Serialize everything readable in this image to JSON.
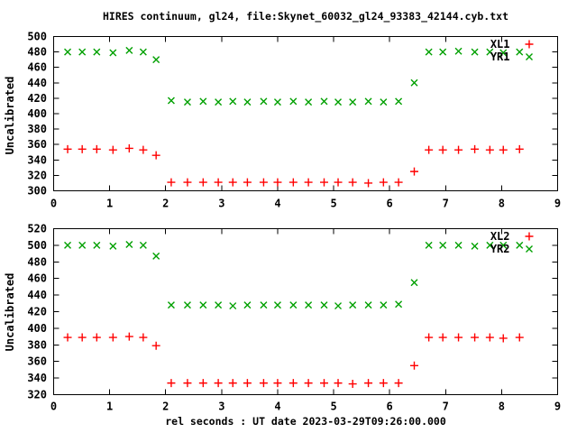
{
  "chart_title": "HIRES continuum, gl24, file:Skynet_60032_gl24_93383_42144.cyb.txt",
  "x_axis_label": "rel seconds : UT date 2023-03-29T09:26:00.000",
  "colors": {
    "background": "#ffffff",
    "axis": "#000000",
    "text": "#000000",
    "plus_series": "#ff0000",
    "cross_series": "#00a000"
  },
  "chart_data": [
    {
      "type": "scatter",
      "panel": "top",
      "ylabel": "Uncalibrated",
      "xlim": [
        0,
        9
      ],
      "ylim": [
        300,
        500
      ],
      "xticks": [
        0,
        1,
        2,
        3,
        4,
        5,
        6,
        7,
        8,
        9
      ],
      "yticks": [
        300,
        320,
        340,
        360,
        380,
        400,
        420,
        440,
        460,
        480,
        500
      ],
      "grid": false,
      "legend_position": "top-right-inside",
      "x": [
        0.25,
        0.51,
        0.77,
        1.06,
        1.35,
        1.6,
        1.83,
        2.1,
        2.39,
        2.67,
        2.94,
        3.2,
        3.46,
        3.75,
        4.0,
        4.28,
        4.55,
        4.83,
        5.08,
        5.34,
        5.62,
        5.89,
        6.16,
        6.44,
        6.7,
        6.95,
        7.23,
        7.52,
        7.79,
        8.03,
        8.32
      ],
      "series": [
        {
          "name": "XL1",
          "marker": "plus",
          "color": "#ff0000",
          "values": [
            354,
            354,
            354,
            353,
            355,
            353,
            346,
            311,
            311,
            311,
            311,
            311,
            311,
            311,
            311,
            311,
            311,
            311,
            311,
            311,
            310,
            311,
            311,
            325,
            353,
            353,
            353,
            354,
            353,
            353,
            354
          ]
        },
        {
          "name": "YR1",
          "marker": "cross",
          "color": "#00a000",
          "values": [
            480,
            480,
            480,
            479,
            482,
            480,
            470,
            417,
            415,
            416,
            415,
            416,
            415,
            416,
            415,
            416,
            415,
            416,
            415,
            415,
            416,
            415,
            416,
            440,
            480,
            480,
            481,
            480,
            480,
            479,
            480
          ]
        }
      ]
    },
    {
      "type": "scatter",
      "panel": "bottom",
      "ylabel": "Uncalibrated",
      "xlim": [
        0,
        9
      ],
      "ylim": [
        320,
        520
      ],
      "xticks": [
        0,
        1,
        2,
        3,
        4,
        5,
        6,
        7,
        8,
        9
      ],
      "yticks": [
        320,
        340,
        360,
        380,
        400,
        420,
        440,
        460,
        480,
        500,
        520
      ],
      "grid": false,
      "legend_position": "top-right-inside",
      "x": [
        0.25,
        0.51,
        0.77,
        1.06,
        1.35,
        1.6,
        1.83,
        2.1,
        2.39,
        2.67,
        2.94,
        3.2,
        3.46,
        3.75,
        4.0,
        4.28,
        4.55,
        4.83,
        5.08,
        5.34,
        5.62,
        5.89,
        6.16,
        6.44,
        6.7,
        6.95,
        7.23,
        7.52,
        7.79,
        8.03,
        8.32
      ],
      "series": [
        {
          "name": "XL2",
          "marker": "plus",
          "color": "#ff0000",
          "values": [
            389,
            389,
            389,
            389,
            390,
            389,
            379,
            334,
            334,
            334,
            334,
            334,
            334,
            334,
            334,
            334,
            334,
            334,
            334,
            333,
            334,
            334,
            334,
            355,
            389,
            389,
            389,
            389,
            389,
            388,
            389
          ]
        },
        {
          "name": "YR2",
          "marker": "cross",
          "color": "#00a000",
          "values": [
            500,
            500,
            500,
            499,
            501,
            500,
            487,
            428,
            428,
            428,
            428,
            427,
            428,
            428,
            428,
            428,
            428,
            428,
            427,
            428,
            428,
            428,
            429,
            455,
            500,
            500,
            500,
            499,
            500,
            500,
            500
          ]
        }
      ]
    }
  ]
}
